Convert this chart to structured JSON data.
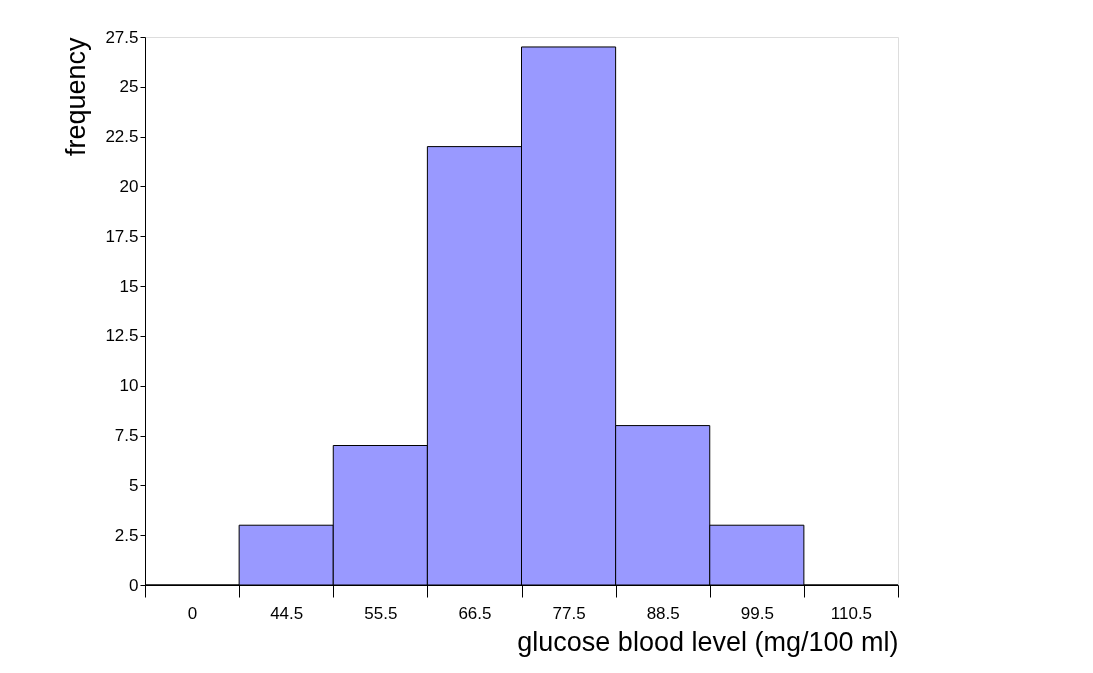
{
  "chart_data": {
    "type": "bar",
    "xlabel": "glucose blood level (mg/100 ml)",
    "ylabel": "frequency",
    "categories": [
      "0",
      "44.5",
      "55.5",
      "66.5",
      "77.5",
      "88.5",
      "99.5",
      "110.5"
    ],
    "values": [
      0,
      3,
      7,
      22,
      27,
      8,
      3,
      0
    ],
    "color": "#9999ff",
    "ylim": [
      0,
      27.5
    ],
    "yticks": [
      0,
      2.5,
      5,
      7.5,
      10,
      12.5,
      15,
      17.5,
      20,
      22.5,
      25,
      27.5
    ],
    "grid": false
  }
}
